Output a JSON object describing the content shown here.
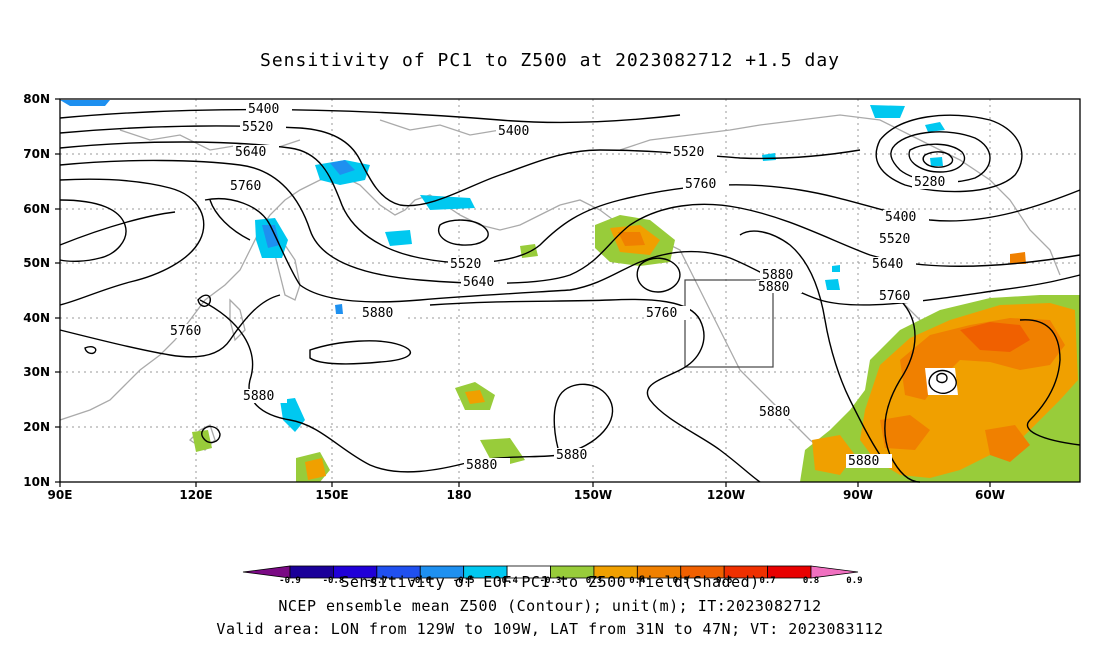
{
  "title": "Sensitivity of PC1 to Z500 at 2023082712 +1.5 day",
  "lat_labels": [
    "80N",
    "70N",
    "60N",
    "50N",
    "40N",
    "30N",
    "20N",
    "10N"
  ],
  "lon_labels": [
    "90E",
    "120E",
    "150E",
    "180",
    "150W",
    "120W",
    "90W",
    "60W"
  ],
  "contour_labels": [
    "5400",
    "5520",
    "5640",
    "5760",
    "5400",
    "5520",
    "5760",
    "5280",
    "5400",
    "5520",
    "5640",
    "5760",
    "5520",
    "5640",
    "5880",
    "5880",
    "5760",
    "5760",
    "5880",
    "5880",
    "5880",
    "5880",
    "5880",
    "5880",
    "5880"
  ],
  "colorbar": {
    "ticks": [
      "-0.9",
      "-0.8",
      "-0.7",
      "-0.6",
      "-0.5",
      "-0.4",
      "-0.3",
      "0.3",
      "0.4",
      "0.5",
      "0.6",
      "0.7",
      "0.8",
      "0.9"
    ],
    "colors": [
      "#7a0a84",
      "#1a0099",
      "#2000d8",
      "#2050f0",
      "#1e90f0",
      "#00c8f0",
      "#ffffff",
      "#98cc3a",
      "#f0a000",
      "#f08000",
      "#f06000",
      "#f03000",
      "#e80000",
      "#f070c0"
    ]
  },
  "footer": {
    "line1": "Sensitivity of EOF PC1 to Z500 field(Shaded)",
    "line2": "NCEP ensemble mean Z500 (Contour); unit(m); IT:2023082712",
    "line3": "Valid area: LON from 129W to 109W, LAT from 31N to 47N; VT: 2023083112"
  }
}
